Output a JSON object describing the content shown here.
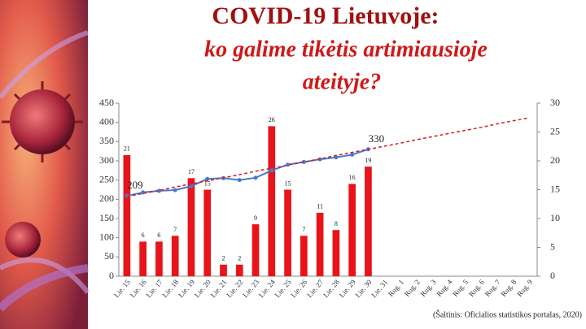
{
  "chart_data": {
    "type": "bar-line",
    "title": "COVID-19 Lietuvoje:",
    "subtitle": [
      "ko galime tikėtis artimiausioje",
      "ateityje?"
    ],
    "source": "(Šaltinis: Oficialios statistikos portalas, 2020)",
    "categories": [
      "Lie. 15",
      "Lie. 16",
      "Lie. 17",
      "Lie. 18",
      "Lie. 19",
      "Lie. 20",
      "Lie. 21",
      "Lie. 22",
      "Lie. 23",
      "Lie. 24",
      "Lie. 25",
      "Lie. 26",
      "Lie. 27",
      "Lie. 28",
      "Lie. 29",
      "Lie. 30",
      "Lie. 31",
      "Rug. 1",
      "Rug. 2",
      "Rug. 3",
      "Rug. 4",
      "Rug. 5",
      "Rug. 6",
      "Rug. 7",
      "Rug. 8",
      "Rug. 9"
    ],
    "series": [
      {
        "type": "bar",
        "axis": "y2",
        "color": "#e8141b",
        "labels": true,
        "values": [
          21,
          6,
          6,
          7,
          17,
          15,
          2,
          2,
          9,
          26,
          15,
          7,
          11,
          8,
          16,
          19,
          null,
          null,
          null,
          null,
          null,
          null,
          null,
          null,
          null,
          null
        ]
      },
      {
        "type": "line",
        "axis": "y",
        "color": "#4a7ac8",
        "markers": true,
        "labeled_points": [
          0,
          15
        ],
        "values": [
          209,
          218,
          222,
          224,
          234,
          253,
          255,
          250,
          256,
          275,
          290,
          297,
          304,
          309,
          316,
          330,
          null,
          null,
          null,
          null,
          null,
          null,
          null,
          null,
          null,
          null
        ]
      },
      {
        "type": "line",
        "axis": "y",
        "color": "#d0202a",
        "dashed": true,
        "values": [
          207,
          215,
          223,
          232,
          240,
          248,
          256,
          264,
          273,
          281,
          289,
          297,
          305,
          314,
          322,
          330,
          338,
          346,
          355,
          363,
          371,
          379,
          387,
          396,
          404,
          412
        ]
      }
    ],
    "ylim": [
      0,
      450
    ],
    "yticks": [
      0,
      50,
      100,
      150,
      200,
      250,
      300,
      350,
      400,
      450
    ],
    "y2lim": [
      0,
      30
    ],
    "y2ticks": [
      0,
      5,
      10,
      15,
      20,
      25,
      30
    ]
  }
}
